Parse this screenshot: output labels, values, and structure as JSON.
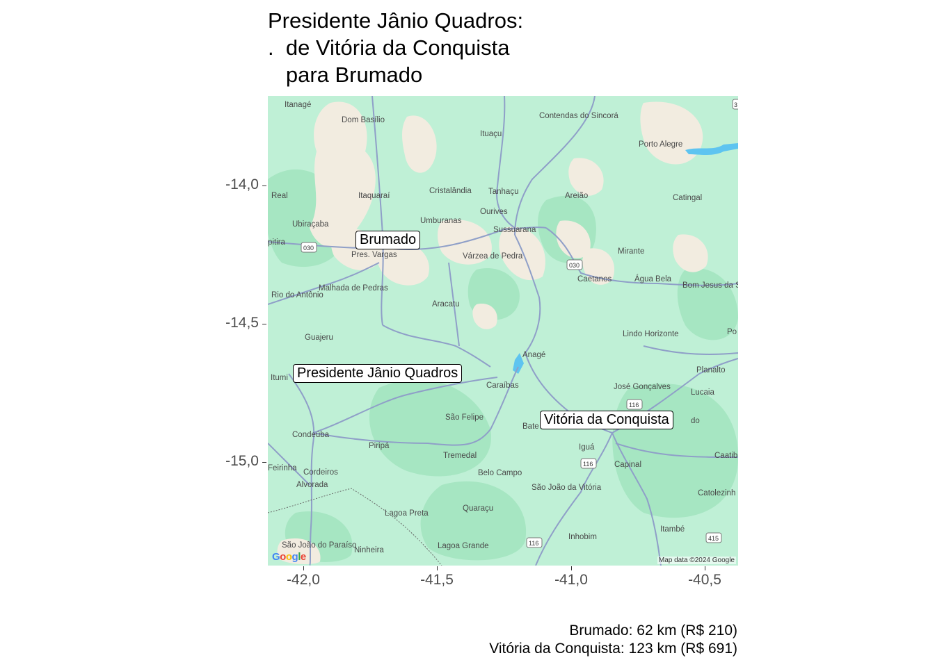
{
  "title": "Presidente Jânio Quadros:\n.  de Vitória da Conquista\n   para Brumado",
  "axes": {
    "y_ticks": [
      "-14,0",
      "-14,5",
      "-15,0"
    ],
    "x_ticks": [
      "-42,0",
      "-41,5",
      "-41,0",
      "-40,5"
    ]
  },
  "markers": [
    {
      "name": "Brumado"
    },
    {
      "name": "Presidente Jânio Quadros"
    },
    {
      "name": "Vitória da Conquista"
    }
  ],
  "caption": {
    "line1": "Brumado: 62 km (R$ 210)",
    "line2": "Vitória da Conquista: 123 km (R$ 691)"
  },
  "basemap": {
    "attribution": "Map data ©2024 Google",
    "logo": "Google",
    "places": [
      "Itanagé",
      "Dom Basílio",
      "Ituaçu",
      "Contendas do Sincorá",
      "Porto Alegre",
      "Real",
      "Itaquaraí",
      "Cristalândia",
      "Tanhaçu",
      "Areião",
      "Catingal",
      "Ourives",
      "Umburanas",
      "Sussuarana",
      "Ubiraçaba",
      "pitira",
      "Pres. Vargas",
      "Várzea de Pedra",
      "Mirante",
      "Caetanos",
      "Água Bela",
      "Bom Jesus da Serra",
      "Rio do Antônio",
      "Malhada de Pedras",
      "Aracatu",
      "Lindo Horizonte",
      "Po",
      "Guajeru",
      "Anagé",
      "Planalto",
      "Itumi",
      "Caraíbas",
      "José Gonçalves",
      "Lucaia",
      "São Felipe",
      "Bate",
      "do",
      "Condeúba",
      "Piripá",
      "Iguá",
      "Tremedal",
      "Capinal",
      "Caatib",
      "Feirinha",
      "Cordeiros",
      "Alvorada",
      "Belo Campo",
      "São João da Vitória",
      "Catolezinh",
      "Lagoa Preta",
      "Quaraçu",
      "Itambé",
      "São João do Paraíso",
      "Ninheira",
      "Lagoa Grande",
      "Inhobim"
    ],
    "road_shields": [
      "030",
      "030",
      "116",
      "116",
      "116",
      "415",
      "3"
    ]
  },
  "colors": {
    "map_base": "#bff0d6",
    "vegetation": "#a6e6c2",
    "urban": "#f2ece0",
    "road": "#8f9fc8",
    "water": "#5ec4f0"
  }
}
